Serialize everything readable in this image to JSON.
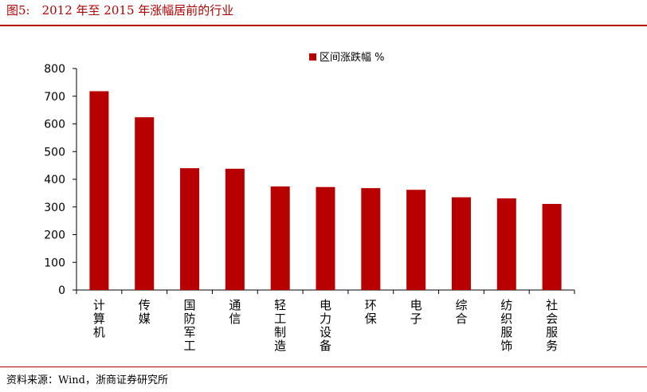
{
  "figure": {
    "title": "图5:　2012 年至 2015 年涨幅居前的行业",
    "source": "资料来源：Wind，浙商证券研究所"
  },
  "colors": {
    "bar": "#b80000",
    "title": "#b00000",
    "axis": "#000000"
  },
  "chart_data": {
    "type": "bar",
    "categories": [
      "计算机",
      "传媒",
      "国防军工",
      "通信",
      "轻工制造",
      "电力设备",
      "环保",
      "电子",
      "综合",
      "纺织服饰",
      "社会服务"
    ],
    "series": [
      {
        "name": "区间涨跌幅 %",
        "values": [
          718,
          624,
          440,
          438,
          374,
          372,
          368,
          362,
          335,
          331,
          311
        ]
      }
    ],
    "ylim": [
      0,
      800
    ],
    "yticks": [
      0,
      100,
      200,
      300,
      400,
      500,
      600,
      700,
      800
    ],
    "legend": "top-center",
    "grid": false
  }
}
